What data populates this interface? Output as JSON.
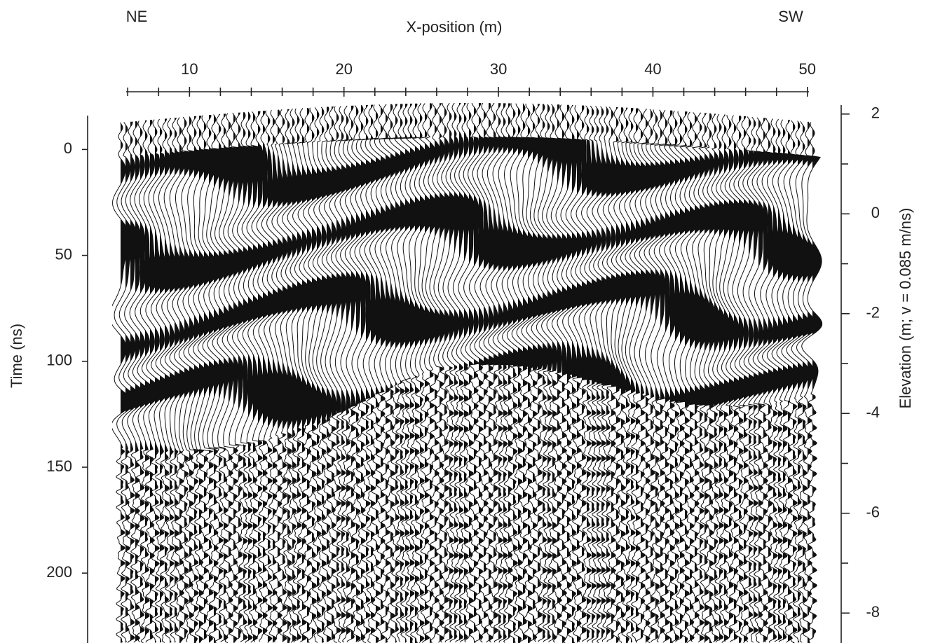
{
  "chart_data": {
    "type": "radargram",
    "annotations": [
      "NE",
      "SW"
    ],
    "xlabel": "X-position (m)",
    "ylabel": "Time (ns)",
    "y2label": "Elevation (m; v = 0.085 m/ns)",
    "xlim": [
      5.9,
      50.1
    ],
    "xticks": [
      10,
      20,
      30,
      40,
      50
    ],
    "xminorticks": [
      6,
      8,
      12,
      14,
      16,
      18,
      22,
      24,
      26,
      28,
      32,
      34,
      36,
      38,
      42,
      44,
      46,
      48
    ],
    "ylim": [
      -16,
      233
    ],
    "yticks": [
      0,
      50,
      100,
      150,
      200
    ],
    "y2lim": [
      2.18,
      -8.6
    ],
    "y2ticks": [
      2,
      0,
      -2,
      -4,
      -6,
      -8
    ],
    "y2minorticks": [
      1,
      -1,
      -3,
      -5,
      -7
    ]
  }
}
